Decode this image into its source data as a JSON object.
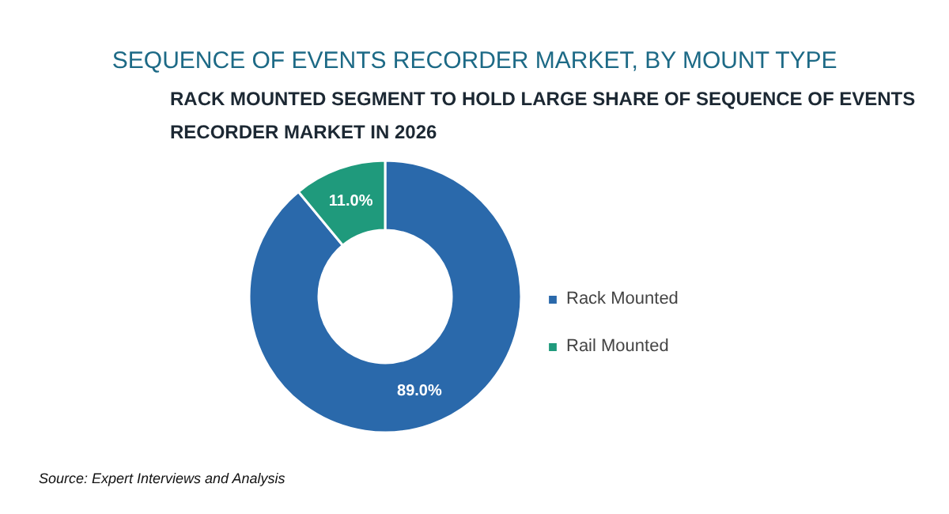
{
  "chart_data": {
    "type": "donut",
    "title": "SEQUENCE OF EVENTS RECORDER MARKET, BY MOUNT TYPE",
    "subtitle": "RACK MOUNTED SEGMENT TO HOLD LARGE SHARE OF SEQUENCE OF EVENTS RECORDER MARKET IN 2026",
    "categories": [
      "Rack Mounted",
      "Rail Mounted"
    ],
    "values": [
      89.0,
      11.0
    ],
    "colors": [
      "#2a69ab",
      "#1f9a7c"
    ],
    "value_labels": [
      "89.0%",
      "11.0%"
    ],
    "legend": "right",
    "annotations": [
      "Source: Expert Interviews and Analysis"
    ]
  }
}
